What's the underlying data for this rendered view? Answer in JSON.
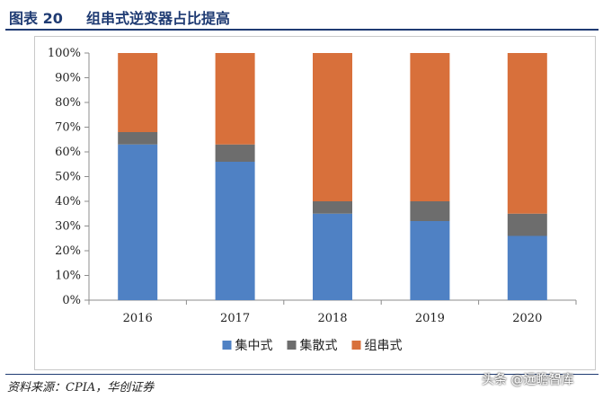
{
  "header": {
    "figure_number": "图表 20",
    "title": "组串式逆变器占比提高"
  },
  "chart_data": {
    "type": "bar",
    "stacked": true,
    "percent": true,
    "categories": [
      "2016",
      "2017",
      "2018",
      "2019",
      "2020"
    ],
    "series": [
      {
        "name": "集中式",
        "color": "#4f81c4",
        "values": [
          63,
          56,
          35,
          32,
          26
        ]
      },
      {
        "name": "集散式",
        "color": "#6d6d6d",
        "values": [
          5,
          7,
          5,
          8,
          9
        ]
      },
      {
        "name": "组串式",
        "color": "#d8703b",
        "values": [
          32,
          37,
          60,
          60,
          65
        ]
      }
    ],
    "ylim": [
      0,
      100
    ],
    "yticks": [
      "0%",
      "10%",
      "20%",
      "30%",
      "40%",
      "50%",
      "60%",
      "70%",
      "80%",
      "90%",
      "100%"
    ],
    "legend_position": "bottom",
    "grid": false
  },
  "footer": {
    "source": "资料来源：CPIA，华创证券",
    "watermark": "头条 @远瞻智库"
  }
}
